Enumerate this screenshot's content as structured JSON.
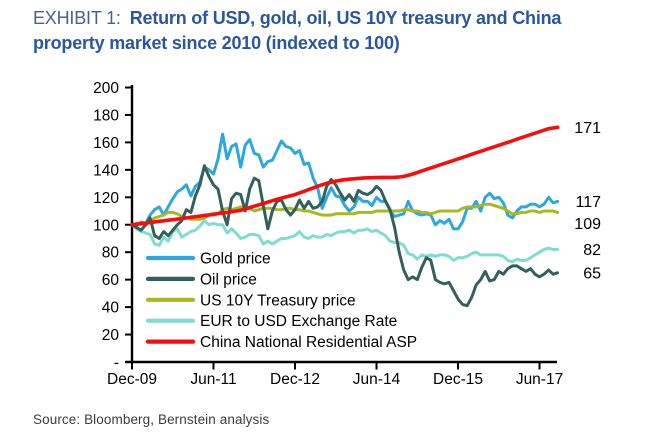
{
  "title": {
    "exhibit": "EXHIBIT 1:",
    "line1": "Return of USD, gold, oil, US 10Y treasury and China",
    "line2": "property market since 2010 (indexed to 100)"
  },
  "source": "Source: Bloomberg, Bernstein analysis",
  "chart_data": {
    "type": "line",
    "title": "Return of USD, gold, oil, US 10Y treasury and China property market since 2010 (indexed to 100)",
    "x_start": "Dec-09",
    "x_end": "Oct-17",
    "x_frequency": "monthly",
    "x_tick_labels": [
      "Dec-09",
      "Jun-11",
      "Dec-12",
      "Jun-14",
      "Dec-15",
      "Jun-17"
    ],
    "x_tick_months": [
      0,
      18,
      36,
      54,
      72,
      90
    ],
    "y_tick_labels": [
      "-",
      "20",
      "40",
      "60",
      "80",
      "100",
      "120",
      "140",
      "160",
      "180",
      "200"
    ],
    "y_ticks": [
      0,
      20,
      40,
      60,
      80,
      100,
      120,
      140,
      160,
      180,
      200
    ],
    "ylim": [
      0,
      200
    ],
    "grid": false,
    "legend_position": "inside lower-left",
    "series": [
      {
        "name": "Gold price",
        "color": "#2BA8DF",
        "end_label": "117",
        "z": 2,
        "width": 3,
        "values": [
          100,
          99,
          102,
          101,
          107,
          111,
          113,
          107,
          113,
          119,
          124,
          126,
          129,
          121,
          128,
          131,
          142,
          140,
          137,
          148,
          166,
          148,
          157,
          159,
          142,
          158,
          162,
          152,
          151,
          142,
          146,
          147,
          154,
          161,
          157,
          156,
          152,
          154,
          144,
          145,
          134,
          127,
          112,
          120,
          127,
          121,
          120,
          114,
          110,
          113,
          120,
          117,
          117,
          114,
          120,
          117,
          117,
          110,
          106,
          107,
          108,
          117,
          110,
          108,
          107,
          108,
          107,
          100,
          103,
          101,
          104,
          97,
          97,
          102,
          112,
          112,
          117,
          110,
          120,
          123,
          119,
          120,
          116,
          107,
          105,
          110,
          113,
          113,
          115,
          115,
          113,
          115,
          120,
          116,
          117
        ]
      },
      {
        "name": "Oil price",
        "color": "#33605B",
        "end_label": "65",
        "z": 4,
        "width": 3,
        "values": [
          100,
          98,
          96,
          100,
          105,
          92,
          90,
          95,
          92,
          96,
          100,
          103,
          111,
          109,
          121,
          129,
          143,
          135,
          129,
          126,
          110,
          100,
          119,
          123,
          122,
          110,
          126,
          134,
          132,
          114,
          97,
          110,
          117,
          118,
          111,
          107,
          111,
          118,
          112,
          117,
          112,
          113,
          117,
          128,
          133,
          129,
          123,
          118,
          122,
          117,
          125,
          123,
          122,
          124,
          128,
          125,
          117,
          111,
          98,
          80,
          67,
          60,
          62,
          60,
          69,
          76,
          74,
          60,
          58,
          57,
          58,
          52,
          46,
          42,
          41,
          47,
          56,
          60,
          66,
          59,
          60,
          66,
          64,
          68,
          70,
          70,
          68,
          66,
          68,
          64,
          62,
          64,
          67,
          64,
          65
        ]
      },
      {
        "name": "US 10Y Treasury price",
        "color": "#A9B81E",
        "end_label": "109",
        "z": 3,
        "width": 3,
        "values": [
          100,
          101,
          101,
          100,
          102,
          105,
          106,
          107,
          109,
          109,
          108,
          106,
          105,
          104,
          104,
          104,
          105,
          107,
          107,
          108,
          111,
          112,
          111,
          112,
          113,
          112,
          112,
          110,
          111,
          112,
          112,
          112,
          111,
          111,
          112,
          112,
          111,
          111,
          110,
          110,
          109,
          108,
          107,
          107,
          107,
          108,
          108,
          108,
          108,
          108,
          109,
          109,
          109,
          109,
          110,
          110,
          110,
          110,
          110,
          110,
          111,
          111,
          110,
          110,
          109,
          109,
          108,
          109,
          110,
          110,
          110,
          110,
          110,
          112,
          113,
          113,
          113,
          114,
          115,
          115,
          114,
          113,
          112,
          110,
          108,
          108,
          109,
          109,
          110,
          110,
          109,
          110,
          110,
          110,
          109
        ]
      },
      {
        "name": "EUR to USD Exchange Rate",
        "color": "#7EDCD3",
        "end_label": "82",
        "z": 1,
        "width": 3,
        "values": [
          100,
          97,
          95,
          94,
          93,
          86,
          85,
          91,
          88,
          95,
          97,
          91,
          93,
          95,
          96,
          99,
          103,
          100,
          101,
          100,
          100,
          94,
          97,
          94,
          90,
          91,
          93,
          93,
          92,
          86,
          88,
          86,
          88,
          90,
          90,
          91,
          92,
          95,
          91,
          90,
          92,
          91,
          91,
          93,
          92,
          94,
          95,
          95,
          96,
          94,
          96,
          96,
          97,
          95,
          96,
          94,
          92,
          88,
          87,
          87,
          85,
          79,
          78,
          75,
          78,
          77,
          78,
          77,
          78,
          78,
          77,
          74,
          76,
          76,
          77,
          79,
          80,
          78,
          78,
          78,
          78,
          78,
          77,
          74,
          73,
          75,
          74,
          74,
          76,
          78,
          80,
          82,
          83,
          82,
          82
        ]
      },
      {
        "name": "China National Residential ASP",
        "color": "#F60D0D",
        "end_label": "171",
        "z": 5,
        "width": 3.6,
        "values": [
          100,
          100.4,
          100.8,
          101.2,
          101.7,
          102.1,
          102.5,
          102.9,
          103.3,
          103.7,
          104.1,
          104.5,
          105,
          105.4,
          105.9,
          106.3,
          106.8,
          107.2,
          107.7,
          108.1,
          108.6,
          109,
          109.5,
          110,
          110.5,
          111.5,
          112.5,
          113.5,
          114.5,
          115.5,
          116.5,
          117.5,
          118.5,
          119.4,
          120.3,
          121.2,
          122,
          123.2,
          124.4,
          125.6,
          126.8,
          128,
          129.2,
          130.2,
          131,
          131.8,
          132.4,
          132.8,
          133.2,
          133.5,
          133.8,
          134,
          134.2,
          134.3,
          134.4,
          134.5,
          134.5,
          134.5,
          134.6,
          134.8,
          135.2,
          136,
          137,
          138.1,
          139.2,
          140.3,
          141.4,
          142.5,
          143.6,
          144.7,
          145.8,
          146.9,
          148,
          149.1,
          150.2,
          151.3,
          152.4,
          153.5,
          154.6,
          155.7,
          156.8,
          157.9,
          159,
          160.1,
          161.2,
          162.3,
          163.4,
          164.5,
          165.6,
          166.7,
          167.8,
          168.9,
          170,
          170.5,
          171
        ]
      }
    ]
  }
}
